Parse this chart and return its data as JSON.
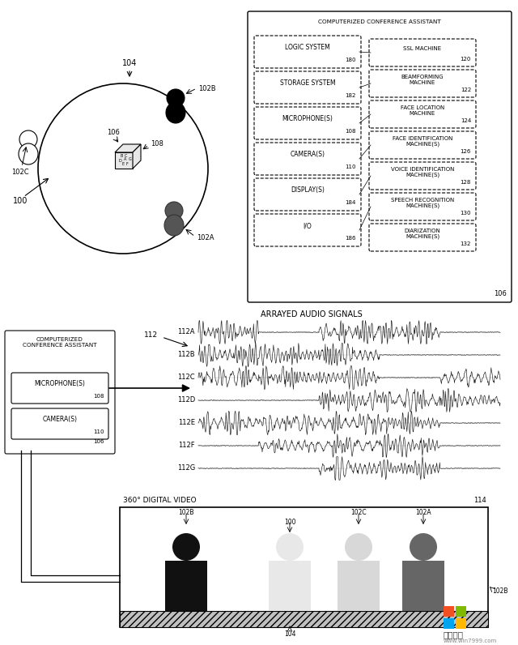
{
  "bg_color": "#ffffff",
  "fig_width": 6.4,
  "fig_height": 7.96,
  "panel1": {
    "title": "COMPUTERIZED CONFERENCE ASSISTANT",
    "left_boxes": [
      {
        "label": "LOGIC SYSTEM",
        "num": "180"
      },
      {
        "label": "STORAGE SYSTEM",
        "num": "182"
      },
      {
        "label": "MICROPHONE(S)",
        "num": "108"
      },
      {
        "label": "CAMERA(S)",
        "num": "110"
      },
      {
        "label": "DISPLAY(S)",
        "num": "184"
      },
      {
        "label": "I/O",
        "num": "186"
      }
    ],
    "right_boxes": [
      {
        "label": "SSL MACHINE",
        "num": "120"
      },
      {
        "label": "BEAMFORMING\nMACHINE",
        "num": "122"
      },
      {
        "label": "FACE LOCATION\nMACHINE",
        "num": "124"
      },
      {
        "label": "FACE IDENTIFICATION\nMACHINE(S)",
        "num": "126"
      },
      {
        "label": "VOICE IDENTIFICATION\nMACHINE(S)",
        "num": "128"
      },
      {
        "label": "SPEECH RECOGNITION\nMACHINE(S)",
        "num": "130"
      },
      {
        "label": "DIARIZATION\nMACHINE(S)",
        "num": "132"
      }
    ],
    "outer_num": "106"
  },
  "panel2": {
    "title": "ARRAYED AUDIO SIGNALS",
    "signal_labels": [
      "112A",
      "112B",
      "112C",
      "112D",
      "112E",
      "112F",
      "112G"
    ],
    "group_label": "112",
    "mic_label": "MICROPHONE(S)",
    "mic_num": "108",
    "cam_label": "CAMERA(S)",
    "cam_num": "110",
    "outer_num": "106"
  },
  "panel3": {
    "title": "360° DIGITAL VIDEO",
    "panel_num": "114",
    "floor_num": "104",
    "right_label": "102B"
  },
  "ms_logo_colors": [
    "#F25022",
    "#7FBA00",
    "#00A4EF",
    "#FFB900"
  ]
}
